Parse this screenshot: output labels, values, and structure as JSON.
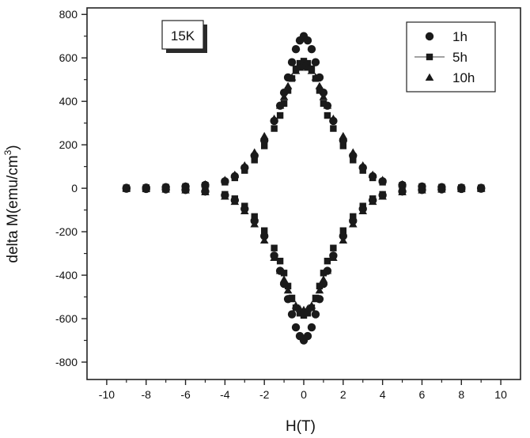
{
  "chart_data": {
    "type": "scatter",
    "title": "",
    "annotation": "15K",
    "xlabel": "H(T)",
    "ylabel": "delta M(emu/cm",
    "ylabel_sup": "3",
    "ylabel_close": ")",
    "xlim": [
      -11,
      11
    ],
    "ylim": [
      -880,
      830
    ],
    "xticks": [
      -10,
      -8,
      -6,
      -4,
      -2,
      0,
      2,
      4,
      6,
      8,
      10
    ],
    "yticks": [
      -800,
      -600,
      -400,
      -200,
      0,
      200,
      400,
      600,
      800
    ],
    "legend": {
      "placement": "top-right"
    },
    "grid": false,
    "series": [
      {
        "name": "1h",
        "marker": "circle",
        "color": "#1a1a1a",
        "branch_x": [
          -9.0,
          -8.0,
          -7.0,
          -6.0,
          -5.0,
          -4.0,
          -3.5,
          -3.0,
          -2.5,
          -2.0,
          -1.5,
          -1.2,
          -1.0,
          -0.8,
          -0.6,
          -0.4,
          -0.2,
          0.0,
          0.2,
          0.4,
          0.6,
          0.8,
          1.0,
          1.2,
          1.5,
          2.0,
          2.5,
          3.0,
          3.5,
          4.0,
          5.0,
          6.0,
          7.0,
          8.0,
          9.0
        ],
        "branch_y": [
          2,
          3,
          5,
          8,
          15,
          32,
          55,
          95,
          150,
          220,
          310,
          380,
          440,
          510,
          580,
          640,
          680,
          700,
          680,
          640,
          580,
          510,
          440,
          380,
          310,
          220,
          150,
          95,
          55,
          32,
          15,
          8,
          5,
          3,
          2
        ]
      },
      {
        "name": "5h",
        "marker": "square",
        "color": "#1a1a1a",
        "branch_x": [
          -9.0,
          -8.0,
          -7.0,
          -6.0,
          -5.0,
          -4.0,
          -3.5,
          -3.0,
          -2.5,
          -2.0,
          -1.5,
          -1.2,
          -1.0,
          -0.8,
          -0.6,
          -0.4,
          -0.2,
          0.0,
          0.2,
          0.4,
          0.6,
          0.8,
          1.0,
          1.2,
          1.5,
          2.0,
          2.5,
          3.0,
          3.5,
          4.0,
          5.0,
          6.0,
          7.0,
          8.0,
          9.0
        ],
        "branch_y": [
          2,
          3,
          5,
          8,
          14,
          28,
          48,
          82,
          130,
          195,
          275,
          335,
          390,
          450,
          505,
          550,
          575,
          585,
          575,
          550,
          505,
          450,
          390,
          335,
          275,
          195,
          130,
          82,
          48,
          28,
          14,
          8,
          5,
          3,
          2
        ]
      },
      {
        "name": "10h",
        "marker": "triangle",
        "color": "#1a1a1a",
        "branch_x": [
          -9.0,
          -8.0,
          -7.0,
          -6.0,
          -5.0,
          -4.0,
          -3.5,
          -3.0,
          -2.5,
          -2.0,
          -1.5,
          -1.2,
          -1.0,
          -0.8,
          -0.6,
          -0.4,
          -0.2,
          0.0,
          0.2,
          0.4,
          0.6,
          0.8,
          1.0,
          1.2,
          1.5,
          2.0,
          2.5,
          3.0,
          3.5,
          4.0,
          5.0,
          6.0,
          7.0,
          8.0,
          9.0
        ],
        "branch_y": [
          2,
          3,
          5,
          9,
          18,
          38,
          62,
          105,
          165,
          240,
          320,
          380,
          420,
          470,
          510,
          540,
          555,
          560,
          555,
          540,
          510,
          470,
          420,
          380,
          320,
          240,
          165,
          105,
          62,
          38,
          18,
          9,
          5,
          3,
          2
        ]
      }
    ]
  }
}
